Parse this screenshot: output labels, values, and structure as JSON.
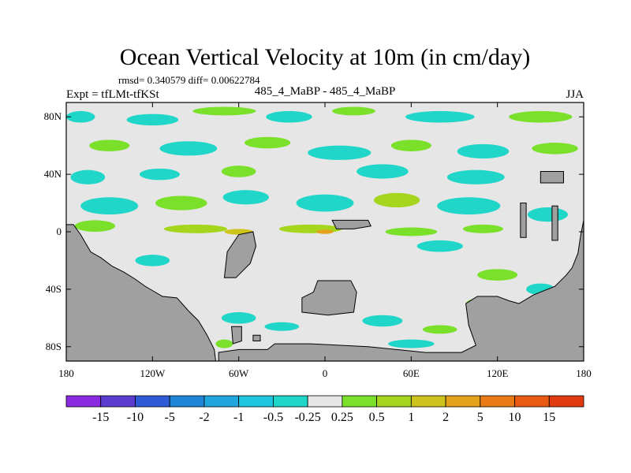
{
  "chart_data": {
    "type": "heatmap",
    "title": "Ocean Vertical Velocity at 10m (in cm/day)",
    "stats_text": "rmsd= 0.340579 diff= 0.00622784",
    "left_label": "Expt = tfLMt-tfKSt",
    "center_label": "485_4_MaBP - 485_4_MaBP",
    "right_label": "JJA",
    "x_ticks": [
      {
        "value": -180,
        "label": "180"
      },
      {
        "value": -120,
        "label": "120W"
      },
      {
        "value": -60,
        "label": "60W"
      },
      {
        "value": 0,
        "label": "0"
      },
      {
        "value": 60,
        "label": "60E"
      },
      {
        "value": 120,
        "label": "120E"
      },
      {
        "value": 180,
        "label": "180"
      }
    ],
    "y_ticks": [
      {
        "value": 80,
        "label": "80N"
      },
      {
        "value": 40,
        "label": "40N"
      },
      {
        "value": 0,
        "label": "0"
      },
      {
        "value": -40,
        "label": "40S"
      },
      {
        "value": -80,
        "label": "80S"
      }
    ],
    "xlim": [
      -180,
      180
    ],
    "ylim": [
      -90,
      90
    ],
    "colorbar": {
      "labels": [
        "-15",
        "-10",
        "-5",
        "-2",
        "-1",
        "-0.5",
        "-0.25",
        "0.25",
        "0.5",
        "1",
        "2",
        "5",
        "10",
        "15"
      ],
      "colors": [
        "#8a2be2",
        "#5a3ccf",
        "#2f5bd6",
        "#1f86d8",
        "#1fa6dd",
        "#1ec6e0",
        "#20d6c8",
        "#e6e6e6",
        "#7ae02a",
        "#a6d51e",
        "#cec31c",
        "#e3a21a",
        "#ea7a16",
        "#e85a12",
        "#e03a10"
      ]
    },
    "colors": {
      "land": "#a0a0a0",
      "neutral": "#e6e6e6",
      "cyan": "#20d6c8",
      "green": "#7ae02a",
      "yellowgreen": "#a6d51e",
      "olive": "#cec31c",
      "orange": "#e3a21a"
    },
    "land_polygons": [
      {
        "name": "south-america",
        "points": [
          [
            -180,
            -90
          ],
          [
            -180,
            5
          ],
          [
            -175,
            5
          ],
          [
            -170,
            -2
          ],
          [
            -163,
            -14
          ],
          [
            -156,
            -18
          ],
          [
            -148,
            -24
          ],
          [
            -140,
            -28
          ],
          [
            -132,
            -33
          ],
          [
            -125,
            -38
          ],
          [
            -113,
            -45
          ],
          [
            -103,
            -46
          ],
          [
            -95,
            -55
          ],
          [
            -88,
            -62
          ],
          [
            -82,
            -72
          ],
          [
            -77,
            -82
          ],
          [
            -76,
            -90
          ]
        ]
      },
      {
        "name": "antarctica",
        "points": [
          [
            -74,
            -90
          ],
          [
            -74,
            -84
          ],
          [
            -60,
            -82
          ],
          [
            -40,
            -82
          ],
          [
            -35,
            -78
          ],
          [
            -10,
            -78
          ],
          [
            30,
            -80
          ],
          [
            70,
            -84
          ],
          [
            95,
            -84
          ],
          [
            105,
            -79
          ],
          [
            100,
            -65
          ],
          [
            98,
            -50
          ],
          [
            106,
            -45
          ],
          [
            120,
            -45
          ],
          [
            128,
            -48
          ],
          [
            135,
            -50
          ],
          [
            145,
            -44
          ],
          [
            160,
            -38
          ],
          [
            168,
            -30
          ],
          [
            172,
            -25
          ],
          [
            176,
            -15
          ],
          [
            178,
            -2
          ],
          [
            180,
            8
          ],
          [
            180,
            -90
          ]
        ]
      },
      {
        "name": "island-west",
        "points": [
          [
            -70,
            -32
          ],
          [
            -68,
            -14
          ],
          [
            -60,
            -2
          ],
          [
            -50,
            0
          ],
          [
            -48,
            -10
          ],
          [
            -52,
            -22
          ],
          [
            -62,
            -32
          ]
        ]
      },
      {
        "name": "island-center",
        "points": [
          [
            -5,
            -34
          ],
          [
            18,
            -34
          ],
          [
            22,
            -42
          ],
          [
            20,
            -56
          ],
          [
            2,
            -58
          ],
          [
            -16,
            -56
          ],
          [
            -16,
            -46
          ],
          [
            -8,
            -42
          ]
        ]
      },
      {
        "name": "equator-block",
        "points": [
          [
            5,
            8
          ],
          [
            30,
            8
          ],
          [
            32,
            4
          ],
          [
            20,
            2
          ],
          [
            8,
            2
          ]
        ]
      },
      {
        "name": "antarctic-peninsula",
        "points": [
          [
            -65,
            -66
          ],
          [
            -58,
            -66
          ],
          [
            -58,
            -76
          ],
          [
            -64,
            -78
          ]
        ]
      },
      {
        "name": "peninsula-islet",
        "points": [
          [
            -50,
            -72
          ],
          [
            -45,
            -72
          ],
          [
            -45,
            -76
          ],
          [
            -50,
            -76
          ]
        ]
      },
      {
        "name": "australia-ne-block",
        "points": [
          [
            150,
            42
          ],
          [
            166,
            42
          ],
          [
            166,
            34
          ],
          [
            150,
            34
          ]
        ]
      },
      {
        "name": "pacific-column",
        "points": [
          [
            136,
            20
          ],
          [
            140,
            20
          ],
          [
            140,
            -4
          ],
          [
            136,
            -4
          ]
        ]
      },
      {
        "name": "pacific-spine",
        "points": [
          [
            158,
            18
          ],
          [
            162,
            18
          ],
          [
            162,
            -6
          ],
          [
            158,
            -6
          ]
        ]
      }
    ],
    "anomaly_blobs": [
      {
        "color": "cyan",
        "cx": -170,
        "cy": 80,
        "rx": 10,
        "ry": 4
      },
      {
        "color": "cyan",
        "cx": -120,
        "cy": 78,
        "rx": 18,
        "ry": 4
      },
      {
        "color": "green",
        "cx": -70,
        "cy": 84,
        "rx": 22,
        "ry": 3
      },
      {
        "color": "cyan",
        "cx": -25,
        "cy": 80,
        "rx": 16,
        "ry": 4
      },
      {
        "color": "green",
        "cx": 20,
        "cy": 84,
        "rx": 15,
        "ry": 3
      },
      {
        "color": "cyan",
        "cx": 80,
        "cy": 80,
        "rx": 24,
        "ry": 4
      },
      {
        "color": "green",
        "cx": 150,
        "cy": 80,
        "rx": 22,
        "ry": 4
      },
      {
        "color": "green",
        "cx": -150,
        "cy": 60,
        "rx": 14,
        "ry": 4
      },
      {
        "color": "cyan",
        "cx": -95,
        "cy": 58,
        "rx": 20,
        "ry": 5
      },
      {
        "color": "green",
        "cx": -40,
        "cy": 62,
        "rx": 16,
        "ry": 4
      },
      {
        "color": "cyan",
        "cx": 10,
        "cy": 55,
        "rx": 22,
        "ry": 5
      },
      {
        "color": "green",
        "cx": 60,
        "cy": 60,
        "rx": 14,
        "ry": 4
      },
      {
        "color": "cyan",
        "cx": 110,
        "cy": 56,
        "rx": 18,
        "ry": 5
      },
      {
        "color": "green",
        "cx": 160,
        "cy": 58,
        "rx": 16,
        "ry": 4
      },
      {
        "color": "cyan",
        "cx": -165,
        "cy": 38,
        "rx": 12,
        "ry": 5
      },
      {
        "color": "cyan",
        "cx": -115,
        "cy": 40,
        "rx": 14,
        "ry": 4
      },
      {
        "color": "green",
        "cx": -60,
        "cy": 42,
        "rx": 12,
        "ry": 4
      },
      {
        "color": "cyan",
        "cx": 40,
        "cy": 42,
        "rx": 18,
        "ry": 5
      },
      {
        "color": "cyan",
        "cx": 105,
        "cy": 38,
        "rx": 20,
        "ry": 5
      },
      {
        "color": "cyan",
        "cx": -150,
        "cy": 18,
        "rx": 20,
        "ry": 6
      },
      {
        "color": "green",
        "cx": -100,
        "cy": 20,
        "rx": 18,
        "ry": 5
      },
      {
        "color": "cyan",
        "cx": -55,
        "cy": 24,
        "rx": 16,
        "ry": 5
      },
      {
        "color": "cyan",
        "cx": 0,
        "cy": 20,
        "rx": 20,
        "ry": 6
      },
      {
        "color": "yellowgreen",
        "cx": 50,
        "cy": 22,
        "rx": 16,
        "ry": 5
      },
      {
        "color": "cyan",
        "cx": 100,
        "cy": 18,
        "rx": 22,
        "ry": 6
      },
      {
        "color": "cyan",
        "cx": 155,
        "cy": 12,
        "rx": 14,
        "ry": 5
      },
      {
        "color": "green",
        "cx": -160,
        "cy": 4,
        "rx": 14,
        "ry": 4
      },
      {
        "color": "yellowgreen",
        "cx": -90,
        "cy": 2,
        "rx": 22,
        "ry": 3
      },
      {
        "color": "olive",
        "cx": -60,
        "cy": 0,
        "rx": 10,
        "ry": 2
      },
      {
        "color": "yellowgreen",
        "cx": -10,
        "cy": 2,
        "rx": 22,
        "ry": 3
      },
      {
        "color": "orange",
        "cx": 0,
        "cy": 0,
        "rx": 6,
        "ry": 1.5
      },
      {
        "color": "green",
        "cx": 60,
        "cy": 0,
        "rx": 18,
        "ry": 3
      },
      {
        "color": "green",
        "cx": 110,
        "cy": 2,
        "rx": 14,
        "ry": 3
      },
      {
        "color": "cyan",
        "cx": 80,
        "cy": -10,
        "rx": 16,
        "ry": 4
      },
      {
        "color": "cyan",
        "cx": -120,
        "cy": -20,
        "rx": 12,
        "ry": 4
      },
      {
        "color": "green",
        "cx": 120,
        "cy": -30,
        "rx": 14,
        "ry": 4
      },
      {
        "color": "cyan",
        "cx": 150,
        "cy": -40,
        "rx": 10,
        "ry": 4
      },
      {
        "color": "green",
        "cx": 110,
        "cy": -50,
        "rx": 12,
        "ry": 4
      },
      {
        "color": "cyan",
        "cx": -60,
        "cy": -60,
        "rx": 12,
        "ry": 4
      },
      {
        "color": "cyan",
        "cx": 40,
        "cy": -62,
        "rx": 14,
        "ry": 4
      },
      {
        "color": "green",
        "cx": 80,
        "cy": -68,
        "rx": 12,
        "ry": 3
      },
      {
        "color": "cyan",
        "cx": -30,
        "cy": -66,
        "rx": 12,
        "ry": 3
      },
      {
        "color": "green",
        "cx": -70,
        "cy": -78,
        "rx": 6,
        "ry": 3
      },
      {
        "color": "cyan",
        "cx": 60,
        "cy": -78,
        "rx": 16,
        "ry": 3
      }
    ]
  }
}
